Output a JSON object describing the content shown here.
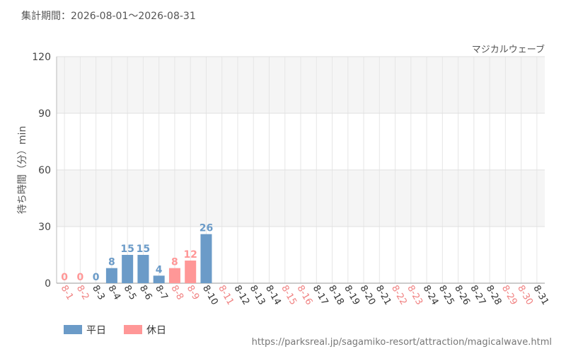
{
  "chart_data": {
    "type": "bar",
    "subtitle": "集計期間：2026-08-01～2026-08-31",
    "title": "マジカルウェーブ",
    "y_label": "待ち時間（分）min",
    "footer": "https://parksreal.jp/sagamiko-resort/attraction/magicalwave.html",
    "categories": [
      "8-1",
      "8-2",
      "8-3",
      "8-4",
      "8-5",
      "8-6",
      "8-7",
      "8-8",
      "8-9",
      "8-10",
      "8-11",
      "8-12",
      "8-13",
      "8-14",
      "8-15",
      "8-16",
      "8-17",
      "8-18",
      "8-19",
      "8-20",
      "8-21",
      "8-22",
      "8-23",
      "8-24",
      "8-25",
      "8-26",
      "8-27",
      "8-28",
      "8-29",
      "8-30",
      "8-31"
    ],
    "category_colors": [
      "#f08080",
      "#f08080",
      "#333333",
      "#333333",
      "#333333",
      "#333333",
      "#333333",
      "#f08080",
      "#f08080",
      "#333333",
      "#f08080",
      "#333333",
      "#333333",
      "#333333",
      "#f08080",
      "#f08080",
      "#333333",
      "#333333",
      "#333333",
      "#333333",
      "#333333",
      "#f08080",
      "#f08080",
      "#333333",
      "#333333",
      "#333333",
      "#333333",
      "#333333",
      "#f08080",
      "#f08080",
      "#333333"
    ],
    "series": [
      {
        "name": "平日",
        "color": "#6b9bc8",
        "values": [
          null,
          null,
          0,
          8,
          15,
          15,
          4,
          null,
          null,
          26,
          null,
          null,
          null,
          null,
          null,
          null,
          null,
          null,
          null,
          null,
          null,
          null,
          null,
          null,
          null,
          null,
          null,
          null,
          null,
          null,
          null
        ]
      },
      {
        "name": "休日",
        "color": "#ff9797",
        "values": [
          0,
          0,
          null,
          null,
          null,
          null,
          null,
          8,
          12,
          null,
          null,
          null,
          null,
          null,
          null,
          null,
          null,
          null,
          null,
          null,
          null,
          null,
          null,
          null,
          null,
          null,
          null,
          null,
          null,
          null,
          null
        ]
      }
    ],
    "ylim": [
      0,
      120
    ],
    "yticks": [
      0,
      30,
      60,
      90,
      120
    ],
    "grid": true
  }
}
